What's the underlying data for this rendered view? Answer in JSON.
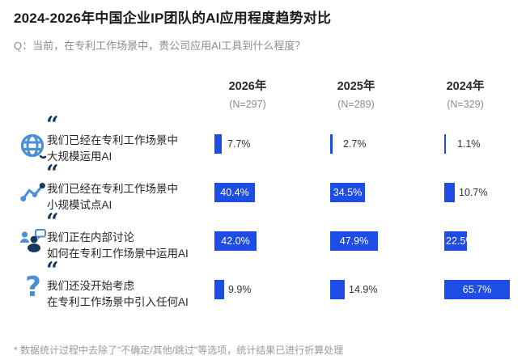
{
  "title": "2024-2026年中国企业IP团队的AI应用程度趋势对比",
  "question": "Q：当前，在专利工作场景中，贵公司应用AI工具到什么程度？",
  "columns": [
    {
      "year": "2026年",
      "n": "(N=297)"
    },
    {
      "year": "2025年",
      "n": "(N=289)"
    },
    {
      "year": "2024年",
      "n": "(N=329)"
    }
  ],
  "rows": [
    {
      "icon": "globe-icon",
      "line1": "我们已经在专利工作场景中",
      "line2": "大规模运用AI",
      "values": [
        7.7,
        2.7,
        1.1
      ],
      "display": [
        "7.7%",
        "2.7%",
        "1.1%"
      ]
    },
    {
      "icon": "trend-icon",
      "line1": "我们已经在专利工作场景中",
      "line2": "小规模试点AI",
      "values": [
        40.4,
        34.5,
        10.7
      ],
      "display": [
        "40.4%",
        "34.5%",
        "10.7%"
      ]
    },
    {
      "icon": "discussion-icon",
      "line1": "我们正在内部讨论",
      "line2": "如何在专利工作场景中运用AI",
      "values": [
        42.0,
        47.9,
        22.5
      ],
      "display": [
        "42.0%",
        "47.9%",
        "22.5%"
      ]
    },
    {
      "icon": "question-icon",
      "line1": "我们还没开始考虑",
      "line2": "在专利工作场景中引入任何AI",
      "values": [
        9.9,
        14.9,
        65.7
      ],
      "display": [
        "9.9%",
        "14.9%",
        "65.7%"
      ]
    }
  ],
  "footnote": "* 数据统计过程中去除了\"不确定/其他/跳过\"等选项，统计结果已进行折算处理",
  "icons": {
    "quote_glyph": "“",
    "question_glyph": "?"
  },
  "colors": {
    "bar_blue": "#1D4DE4",
    "icon_blue": "#4A8FD6",
    "icon_navy": "#17375E"
  },
  "chart_data": {
    "type": "bar",
    "orientation": "horizontal",
    "title": "2024-2026年中国企业IP团队的AI应用程度趋势对比",
    "categories": [
      "我们已经在专利工作场景中大规模运用AI",
      "我们已经在专利工作场景中小规模试点AI",
      "我们正在内部讨论如何在专利工作场景中运用AI",
      "我们还没开始考虑在专利工作场景中引入任何AI"
    ],
    "series": [
      {
        "name": "2026年 (N=297)",
        "values": [
          7.7,
          40.4,
          42.0,
          9.9
        ]
      },
      {
        "name": "2025年 (N=289)",
        "values": [
          2.7,
          34.5,
          47.9,
          14.9
        ]
      },
      {
        "name": "2024年 (N=329)",
        "values": [
          1.1,
          10.7,
          22.5,
          65.7
        ]
      }
    ],
    "value_unit": "%",
    "xlim": [
      0,
      100
    ],
    "grid": false,
    "legend_position": "column-headers"
  }
}
